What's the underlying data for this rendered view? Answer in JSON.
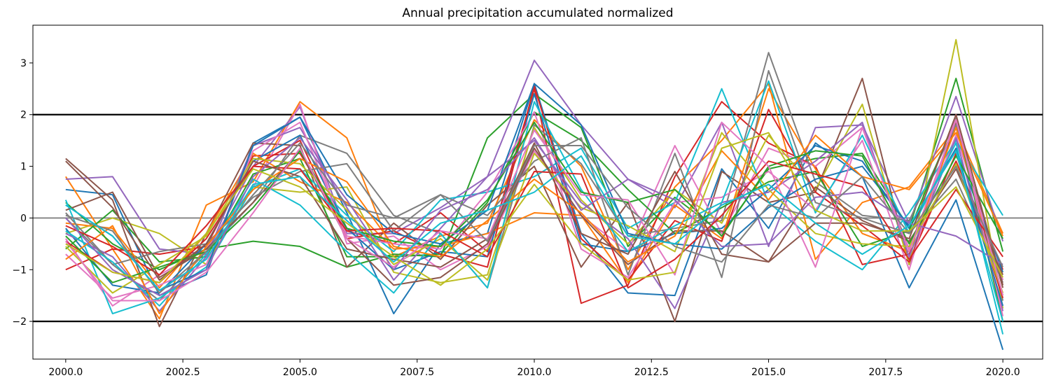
{
  "chart_data": {
    "type": "line",
    "title": "Annual precipitation accumulated normalized",
    "xlabel": "",
    "ylabel": "",
    "xlim": [
      1999.3,
      2020.85
    ],
    "ylim": [
      -2.73,
      3.73
    ],
    "x_ticks": [
      "2000.0",
      "2002.5",
      "2005.0",
      "2007.5",
      "2010.0",
      "2012.5",
      "2015.0",
      "2017.5",
      "2020.0"
    ],
    "y_ticks": [
      "−2",
      "−1",
      "0",
      "1",
      "2",
      "3"
    ],
    "grid": false,
    "legend": "none",
    "reference_lines": [
      {
        "y": 2,
        "color": "#000000"
      },
      {
        "y": -2,
        "color": "#000000"
      },
      {
        "y": 0,
        "color": "#808080"
      }
    ],
    "x": [
      2000,
      2001,
      2002,
      2003,
      2004,
      2005,
      2006,
      2007,
      2008,
      2009,
      2010,
      2011,
      2012,
      2013,
      2014,
      2015,
      2016,
      2017,
      2018,
      2019,
      2020
    ],
    "color_cycle": [
      "#1f77b4",
      "#ff7f0e",
      "#2ca02c",
      "#d62728",
      "#9467bd",
      "#8c564b",
      "#e377c2",
      "#7f7f7f",
      "#bcbd22",
      "#17becf"
    ],
    "series": [
      {
        "values": [
          0.55,
          0.45,
          -1.5,
          -1.1,
          1.45,
          1.95,
          0.1,
          -1.85,
          -0.5,
          -0.3,
          2.6,
          -0.3,
          -1.45,
          -1.5,
          0.95,
          -0.2,
          1.45,
          0.8,
          -1.35,
          0.35,
          -2.55
        ]
      },
      {
        "values": [
          0.8,
          -0.6,
          -1.95,
          0.25,
          0.7,
          2.25,
          1.55,
          -0.75,
          -0.35,
          -0.1,
          1.9,
          1.0,
          -1.0,
          0.6,
          1.5,
          2.6,
          -0.8,
          0.3,
          0.6,
          1.75,
          -0.3
        ]
      },
      {
        "values": [
          0.3,
          -0.5,
          -1.0,
          -0.6,
          -0.45,
          -0.55,
          -0.95,
          -0.7,
          -0.75,
          1.55,
          2.4,
          1.75,
          -0.55,
          0.4,
          -0.3,
          0.95,
          1.15,
          1.25,
          -0.2,
          2.7,
          -0.65
        ]
      },
      {
        "values": [
          -1.0,
          -0.6,
          -0.7,
          -0.55,
          1.2,
          1.25,
          -0.25,
          -0.5,
          0.1,
          -0.65,
          2.5,
          -1.65,
          -1.3,
          0.8,
          2.25,
          1.45,
          1.0,
          -0.9,
          -0.7,
          1.1,
          -1.0
        ]
      },
      {
        "values": [
          0.75,
          0.8,
          -0.6,
          -0.7,
          1.0,
          2.15,
          -0.3,
          -0.3,
          0.2,
          0.8,
          3.05,
          1.8,
          0.75,
          0.2,
          1.85,
          -0.55,
          1.75,
          1.8,
          -0.1,
          2.35,
          -0.45
        ]
      },
      {
        "values": [
          1.15,
          0.35,
          -2.1,
          -0.3,
          1.45,
          1.4,
          -0.95,
          -0.1,
          -0.8,
          0.25,
          1.0,
          -0.95,
          0.3,
          -2.0,
          0.9,
          0.3,
          0.5,
          2.7,
          -0.9,
          1.85,
          -1.35
        ]
      },
      {
        "values": [
          -0.4,
          -1.7,
          -1.1,
          -0.6,
          0.6,
          2.2,
          -0.5,
          -0.35,
          -1.0,
          -0.55,
          1.3,
          0.05,
          -0.65,
          1.4,
          -0.3,
          1.35,
          1.0,
          1.75,
          -0.6,
          1.6,
          -1.2
        ]
      },
      {
        "values": [
          0.0,
          -0.9,
          -1.6,
          -0.65,
          0.3,
          1.6,
          1.25,
          0.05,
          -0.3,
          -1.35,
          1.8,
          1.05,
          -0.35,
          -0.2,
          -0.05,
          3.2,
          0.7,
          0.05,
          -0.05,
          1.8,
          -1.6
        ]
      },
      {
        "values": [
          -0.3,
          0.0,
          -0.3,
          -0.9,
          0.6,
          0.5,
          0.6,
          -1.05,
          -1.25,
          -1.1,
          1.75,
          0.35,
          -0.5,
          0.55,
          -0.1,
          1.6,
          0.55,
          2.2,
          -0.9,
          3.45,
          -1.75
        ]
      },
      {
        "values": [
          0.35,
          -1.85,
          -1.55,
          -0.95,
          0.6,
          0.95,
          0.05,
          -0.65,
          0.35,
          0.5,
          0.8,
          1.35,
          -0.2,
          0.3,
          2.5,
          0.3,
          -0.45,
          -1.0,
          0.1,
          1.5,
          0.05
        ]
      },
      {
        "values": [
          -0.2,
          -1.3,
          -1.45,
          -0.5,
          1.1,
          1.6,
          -0.2,
          -1.0,
          -0.65,
          -0.75,
          2.4,
          -0.5,
          -0.65,
          -0.3,
          -0.2,
          0.55,
          1.4,
          1.1,
          -0.2,
          1.35,
          -1.05
        ]
      },
      {
        "values": [
          -0.1,
          -0.2,
          -1.35,
          -0.3,
          1.25,
          0.7,
          0.3,
          -0.6,
          -0.55,
          -0.3,
          0.1,
          0.05,
          -1.25,
          0.25,
          -0.4,
          2.5,
          0.95,
          -0.3,
          -0.65,
          1.75,
          -1.5
        ]
      },
      {
        "values": [
          -0.6,
          0.15,
          -0.85,
          -0.75,
          0.85,
          1.15,
          -0.75,
          -0.75,
          -0.7,
          0.3,
          2.05,
          1.5,
          0.55,
          -0.3,
          0.2,
          0.7,
          0.9,
          -0.55,
          -0.25,
          1.95,
          -2.0
        ]
      },
      {
        "values": [
          -0.45,
          -1.05,
          -1.25,
          -0.4,
          1.0,
          1.5,
          -0.4,
          -0.25,
          -0.7,
          -0.95,
          2.55,
          -0.4,
          -1.2,
          -0.05,
          -0.45,
          2.1,
          0.5,
          -0.15,
          -0.85,
          1.25,
          -1.55
        ]
      },
      {
        "values": [
          -0.3,
          -0.75,
          -1.8,
          -0.75,
          1.4,
          1.75,
          0.2,
          -1.2,
          -0.2,
          0.8,
          1.5,
          0.3,
          -0.4,
          -1.75,
          0.3,
          0.5,
          1.1,
          1.85,
          -0.75,
          1.55,
          -1.8
        ]
      },
      {
        "values": [
          0.15,
          0.5,
          -1.15,
          -0.6,
          0.3,
          1.3,
          -0.4,
          -1.3,
          -1.15,
          -0.5,
          1.35,
          0.05,
          -0.9,
          -0.25,
          -0.25,
          -0.85,
          0.6,
          -0.05,
          -0.45,
          0.95,
          -1.1
        ]
      },
      {
        "values": [
          -0.7,
          -1.55,
          -1.3,
          -0.9,
          1.3,
          1.85,
          -0.35,
          -0.5,
          -0.6,
          0.5,
          2.05,
          -0.6,
          -1.15,
          0.3,
          0.4,
          0.9,
          0.15,
          1.5,
          -1.0,
          2.0,
          -1.9
        ]
      },
      {
        "values": [
          0.1,
          -0.9,
          -0.65,
          -0.5,
          0.4,
          0.9,
          1.05,
          -0.25,
          0.45,
          0.05,
          1.1,
          1.55,
          -1.1,
          1.25,
          -1.15,
          2.85,
          0.3,
          0.0,
          -0.3,
          0.75,
          -1.25
        ]
      },
      {
        "values": [
          -0.55,
          -1.45,
          -0.9,
          -0.35,
          1.15,
          1.05,
          0.15,
          -0.9,
          -0.4,
          -1.2,
          1.25,
          0.2,
          -0.15,
          -0.65,
          1.65,
          0.55,
          -0.3,
          -0.5,
          -0.55,
          1.05,
          -1.45
        ]
      },
      {
        "values": [
          -0.25,
          -0.85,
          -1.7,
          -0.7,
          0.75,
          0.25,
          -0.65,
          -1.45,
          -0.3,
          -1.35,
          2.25,
          0.55,
          -0.65,
          -0.15,
          0.3,
          2.65,
          0.1,
          1.6,
          -0.3,
          1.45,
          -2.25
        ]
      },
      {
        "values": [
          0.25,
          -0.35,
          -1.4,
          -1.0,
          1.4,
          1.95,
          0.45,
          -0.3,
          -0.5,
          0.15,
          2.6,
          1.8,
          -0.3,
          -0.5,
          -0.6,
          0.2,
          0.75,
          1.0,
          -0.15,
          1.3,
          -1.7
        ]
      },
      {
        "values": [
          -0.8,
          -0.15,
          -1.85,
          -0.55,
          0.55,
          1.15,
          0.7,
          -0.55,
          -0.75,
          -0.05,
          0.75,
          0.1,
          -0.85,
          -0.35,
          1.3,
          0.35,
          1.6,
          0.8,
          0.55,
          1.65,
          -0.35
        ]
      },
      {
        "values": [
          -0.35,
          -1.25,
          -0.95,
          -0.65,
          0.2,
          1.3,
          -0.2,
          -0.45,
          -0.55,
          0.35,
          1.85,
          0.5,
          0.3,
          0.55,
          -0.35,
          1.0,
          1.3,
          1.2,
          -0.5,
          1.2,
          -0.4
        ]
      },
      {
        "values": [
          -0.15,
          -0.55,
          -1.1,
          -0.15,
          1.0,
          0.95,
          -0.25,
          -0.2,
          -0.25,
          -0.75,
          0.9,
          0.85,
          -1.35,
          -0.8,
          0.05,
          1.1,
          0.85,
          0.6,
          -0.8,
          0.55,
          -0.75
        ]
      },
      {
        "values": [
          0.0,
          -1.0,
          -1.5,
          -1.0,
          0.8,
          1.55,
          0.35,
          -1.0,
          0.15,
          0.55,
          1.55,
          0.15,
          0.75,
          0.35,
          -0.55,
          -0.5,
          0.4,
          0.5,
          -0.1,
          -0.35,
          -0.9
        ]
      },
      {
        "values": [
          1.1,
          0.2,
          -1.2,
          -0.5,
          1.1,
          0.8,
          -0.6,
          -0.8,
          -0.95,
          -0.4,
          1.45,
          -0.3,
          -0.7,
          0.9,
          -0.7,
          -0.85,
          -0.1,
          -0.1,
          -0.4,
          2.0,
          -1.3
        ]
      },
      {
        "values": [
          -0.45,
          -1.6,
          -1.6,
          -1.05,
          0.1,
          1.35,
          -0.4,
          -0.95,
          -0.25,
          -0.4,
          1.7,
          0.45,
          0.35,
          -1.1,
          1.85,
          1.0,
          -0.95,
          1.75,
          -0.65,
          1.9,
          -1.5
        ]
      },
      {
        "values": [
          0.05,
          -0.25,
          -1.45,
          -0.65,
          0.45,
          1.45,
          0.25,
          0.0,
          0.45,
          -0.45,
          1.4,
          1.4,
          0.2,
          -0.55,
          -0.85,
          0.25,
          0.0,
          0.8,
          -0.3,
          1.0,
          -0.95
        ]
      },
      {
        "values": [
          -0.5,
          -1.05,
          -1.25,
          -0.3,
          0.95,
          0.6,
          -0.1,
          -0.75,
          -1.3,
          -0.6,
          0.65,
          -0.5,
          -1.2,
          -1.05,
          1.35,
          1.65,
          0.15,
          -0.25,
          -0.25,
          0.6,
          -1.15
        ]
      },
      {
        "values": [
          0.25,
          -0.35,
          -1.4,
          -0.8,
          0.65,
          0.8,
          -0.05,
          -0.85,
          -0.1,
          0.15,
          0.5,
          1.2,
          -0.35,
          -0.5,
          0.25,
          0.65,
          -0.1,
          -0.7,
          -0.15,
          1.3,
          -2.0
        ]
      }
    ]
  }
}
